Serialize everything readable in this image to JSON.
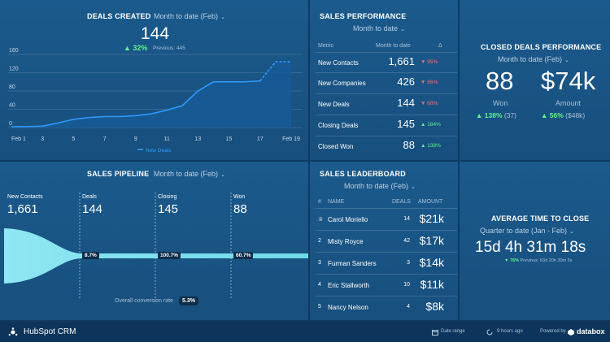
{
  "deals_created": {
    "title": "DEALS CREATED",
    "period": "Month to date (Feb)",
    "value": "144",
    "change": "32%",
    "previous": "Previous: 445",
    "y_ticks": [
      "160",
      "120",
      "80",
      "40",
      "0"
    ],
    "x_ticks": [
      "Feb 1",
      "3",
      "5",
      "7",
      "9",
      "11",
      "13",
      "15",
      "17",
      "Feb 19"
    ],
    "legend": "New Deals"
  },
  "chart_data": {
    "type": "area",
    "x": [
      "Feb 1",
      "2",
      "3",
      "4",
      "5",
      "6",
      "7",
      "8",
      "9",
      "10",
      "11",
      "12",
      "13",
      "14",
      "15",
      "16",
      "17",
      "18",
      "Feb 19"
    ],
    "series": [
      {
        "name": "New Deals",
        "values": [
          2,
          2,
          3,
          10,
          18,
          22,
          24,
          24,
          26,
          30,
          38,
          48,
          80,
          100,
          100,
          100,
          102,
          144,
          144
        ]
      }
    ],
    "ylim": [
      0,
      160
    ],
    "grid": true,
    "legend": "bottom-center"
  },
  "sales_performance": {
    "title": "SALES PERFORMANCE",
    "period": "Month to date",
    "col_metric": "Metric",
    "col_period": "Month to date",
    "col_delta": "Δ",
    "rows": [
      {
        "metric": "New Contacts",
        "value": "1,661",
        "delta": "▼ 95%",
        "dir": "down"
      },
      {
        "metric": "New Companies",
        "value": "426",
        "delta": "▼ 86%",
        "dir": "down"
      },
      {
        "metric": "New Deals",
        "value": "144",
        "delta": "▼ 68%",
        "dir": "down"
      },
      {
        "metric": "Closing Deals",
        "value": "145",
        "delta": "▲ 184%",
        "dir": "up"
      },
      {
        "metric": "Closed Won",
        "value": "88",
        "delta": "▲ 138%",
        "dir": "up"
      }
    ]
  },
  "closed_deals": {
    "title": "CLOSED DEALS PERFORMANCE",
    "period": "Month to date (Feb)",
    "won_value": "88",
    "won_label": "Won",
    "won_change": "▲ 138%",
    "won_prev": "(37)",
    "amount_value": "$74k",
    "amount_label": "Amount",
    "amount_change": "▲ 56%",
    "amount_prev": "($48k)"
  },
  "pipeline": {
    "title": "SALES PIPELINE",
    "period": "Month to date (Feb)",
    "stages": [
      {
        "label": "New Contacts",
        "value": "1,661"
      },
      {
        "label": "Deals",
        "value": "144"
      },
      {
        "label": "Closing",
        "value": "145"
      },
      {
        "label": "Won",
        "value": "88"
      }
    ],
    "conversions": [
      "8.7%",
      "100.7%",
      "60.7%"
    ],
    "overall_label": "Overall conversion rate",
    "overall_value": "5.3%"
  },
  "leaderboard": {
    "title": "SALES LEADERBOARD",
    "period": "Month to date (Feb)",
    "col_rank": "#",
    "col_name": "NAME",
    "col_deals": "DEALS",
    "col_amount": "AMOUNT",
    "rows": [
      {
        "rank": "",
        "name": "Carol Moriello",
        "deals": "14",
        "amount": "$21k"
      },
      {
        "rank": "2",
        "name": "Misty Royce",
        "deals": "42",
        "amount": "$17k"
      },
      {
        "rank": "3",
        "name": "Furman Sanders",
        "deals": "3",
        "amount": "$14k"
      },
      {
        "rank": "4",
        "name": "Eric Stallworth",
        "deals": "10",
        "amount": "$11k"
      },
      {
        "rank": "5",
        "name": "Nancy Nelson",
        "deals": "4",
        "amount": "$8k"
      }
    ]
  },
  "avg_time": {
    "title": "AVERAGE TIME TO CLOSE",
    "period": "Quarter to date (Jan - Feb)",
    "value": "15d 4h 31m 18s",
    "change": "▼ 76%",
    "previous": "Previous: 63d 20h 30m 5s"
  },
  "footer": {
    "app_name": "HubSpot CRM",
    "date_range": "Date range",
    "updated": "9 hours ago",
    "powered_by": "Powered by",
    "brand": "databox"
  }
}
